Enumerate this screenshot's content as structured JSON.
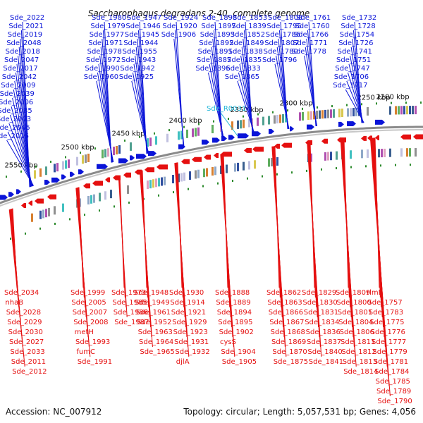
{
  "title": "Saccharophagus degradans 2-40, complete genome",
  "accession": "Accession: NC_007912",
  "summary": "Topology: circular; Length: 5,057,531 bp; Genes: 4,056",
  "colors": {
    "forward": "#0a14d8",
    "reverse": "#e51010",
    "rna": "#1fb5d8",
    "backbone": "#8a8a8a",
    "tick": "#2c8a2c"
  },
  "ruler": [
    {
      "label": "2200 kbp",
      "pos": 3
    },
    {
      "label": "2250 kbp",
      "pos": 30
    },
    {
      "label": "2300 kbp",
      "pos": 140
    },
    {
      "label": "2350 kbp",
      "pos": 210
    },
    {
      "label": "2400 kbp",
      "pos": 297
    },
    {
      "label": "2450 kbp",
      "pos": 378
    },
    {
      "label": "2500 kbp",
      "pos": 450
    },
    {
      "label": "2550 kbp",
      "pos": 530
    }
  ],
  "forward_labels": [
    "Sde_2022",
    "Sde_2021",
    "Sde_2019",
    "Sde_2048",
    "Sde_2018",
    "Sde_2047",
    "Sde_2017",
    "Sde_2042",
    "Sde_2009",
    "Sde_2039",
    "Sde_2006",
    "Sde_2035",
    "Sde_2003",
    "Sde_2046",
    "Sde_2016",
    "Sde_1980",
    "Sde_1979",
    "Sde_1977",
    "Sde_1971",
    "Sde_1978",
    "Sde_1972",
    "Sde_1990",
    "Sde_1960",
    "Sde_1947",
    "Sde_1946",
    "Sde_1945",
    "Sde_1944",
    "Sde_1955",
    "Sde_1943",
    "Sde_1942",
    "Sde_1925",
    "Sde_1924",
    "Sde_1920",
    "Sde_1906",
    "Sde_1898",
    "Sde_1897",
    "Sde_1893",
    "Sde_1892",
    "Sde_1891",
    "Sde_1887",
    "Sde_1896",
    "Sde_1853",
    "Sde_1839",
    "Sde_1852",
    "Sde_1849",
    "Sde_1838",
    "Sde_1835",
    "Sde_1833",
    "Sde_1865",
    "Sde_1808",
    "Sde_1795",
    "Sde_1786",
    "Sde_1807",
    "Sde_1780",
    "Sde_1796",
    "Sde_1761",
    "Sde_1760",
    "Sde_1766",
    "Sde_1771",
    "Sde_1778",
    "Sde_1732",
    "Sde_1728",
    "Sde_1754",
    "Sde_1726",
    "Sde_1741",
    "Sde_1751",
    "Sde_1747",
    "Sde_1706",
    "Sde_1717"
  ],
  "rna_labels": [
    "Sde_R0031"
  ],
  "reverse_labels": [
    "Sde_2034",
    "nhaB",
    "Sde_2028",
    "Sde_2029",
    "Sde_2030",
    "Sde_2027",
    "Sde_2033",
    "Sde_2011",
    "Sde_2012",
    "Sde_1999",
    "Sde_2005",
    "Sde_2007",
    "Sde_2008",
    "metH",
    "Sde_1993",
    "fumC",
    "Sde_1991",
    "Sde_1973",
    "Sde_1985",
    "Sde_1986",
    "Sde_1987",
    "Sde_1948",
    "Sde_1949",
    "Sde_1961",
    "Sde_1952",
    "Sde_1963",
    "Sde_1964",
    "Sde_1965",
    "Sde_1930",
    "Sde_1914",
    "Sde_1921",
    "Sde_1929",
    "Sde_1923",
    "Sde_1931",
    "Sde_1932",
    "djlA",
    "Sde_1888",
    "Sde_1889",
    "Sde_1894",
    "Sde_1895",
    "Sde_1902",
    "cysS",
    "Sde_1904",
    "Sde_1905",
    "Sde_1862",
    "Sde_1863",
    "Sde_1866",
    "Sde_1867",
    "Sde_1868",
    "Sde_1869",
    "Sde_1870",
    "Sde_1875",
    "Sde_1829",
    "Sde_1830",
    "Sde_1831",
    "Sde_1834",
    "Sde_1836",
    "Sde_1837",
    "Sde_1840",
    "Sde_1841",
    "Sde_1809",
    "Sde_1800",
    "Sde_1801",
    "Sde_1804",
    "Sde_1806",
    "Sde_1811",
    "Sde_1812",
    "Sde_1813",
    "Sde_1814",
    "rlmL",
    "Sde_1757",
    "Sde_1783",
    "Sde_1775",
    "Sde_1776",
    "Sde_1777",
    "Sde_1779",
    "Sde_1781",
    "Sde_1784",
    "Sde_1785",
    "Sde_1789",
    "Sde_1790"
  ]
}
